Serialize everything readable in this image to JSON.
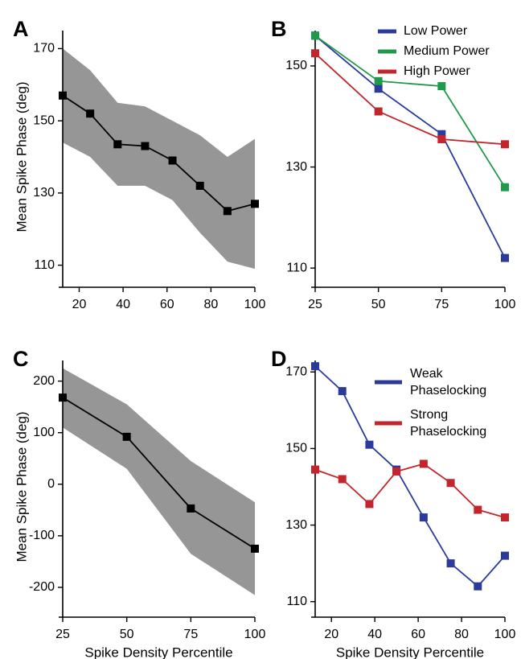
{
  "figure": {
    "x_axis_title": "Spike Density Percentile",
    "y_axis_title": "Mean Spike Phase (deg)"
  },
  "chart_data": [
    {
      "panel": "A",
      "type": "line",
      "ylabel": "Mean Spike Phase (deg)",
      "xlabel": "",
      "xlim": [
        12.5,
        100
      ],
      "ylim": [
        105,
        175
      ],
      "x_ticks": [
        20,
        40,
        60,
        80,
        100
      ],
      "y_ticks": [
        110,
        130,
        150,
        170
      ],
      "grid": false,
      "shaded_band": true,
      "band_color": "#969696",
      "series": [
        {
          "color": "#000000",
          "x": [
            12.5,
            25,
            37.5,
            50,
            62.5,
            75,
            87.5,
            100
          ],
          "values": [
            157,
            152,
            143.5,
            143,
            139,
            132,
            125,
            127
          ],
          "band_upper": [
            170,
            164,
            155,
            154,
            150,
            146,
            140,
            145
          ],
          "band_lower": [
            144,
            140,
            132,
            132,
            128,
            119,
            111,
            109
          ]
        }
      ]
    },
    {
      "panel": "B",
      "type": "line",
      "ylabel": "",
      "xlabel": "",
      "xlim": [
        25,
        100
      ],
      "ylim": [
        107,
        157
      ],
      "x_ticks": [
        25,
        50,
        75,
        100
      ],
      "y_ticks": [
        110,
        130,
        150
      ],
      "grid": false,
      "legend_position": "top-right",
      "series": [
        {
          "name": "Low Power",
          "color": "#2a3b9c",
          "x": [
            25,
            50,
            75,
            100
          ],
          "values": [
            156,
            145.5,
            136.5,
            112
          ]
        },
        {
          "name": "Medium Power",
          "color": "#1f9a4a",
          "x": [
            25,
            50,
            75,
            100
          ],
          "values": [
            156,
            147,
            146,
            126
          ]
        },
        {
          "name": "High Power",
          "color": "#c2262c",
          "x": [
            25,
            50,
            75,
            100
          ],
          "values": [
            152.5,
            141,
            135.5,
            134.5
          ]
        }
      ]
    },
    {
      "panel": "C",
      "type": "line",
      "ylabel": "Mean Spike Phase (deg)",
      "xlabel": "Spike Density Percentile",
      "xlim": [
        25,
        100
      ],
      "ylim": [
        -250,
        240
      ],
      "x_ticks": [
        25,
        50,
        75,
        100
      ],
      "y_ticks": [
        -200,
        -100,
        0,
        100,
        200
      ],
      "grid": false,
      "shaded_band": true,
      "band_color": "#969696",
      "series": [
        {
          "color": "#000000",
          "x": [
            25,
            50,
            75,
            100
          ],
          "values": [
            168,
            92,
            -47,
            -125
          ],
          "band_upper": [
            225,
            155,
            45,
            -35
          ],
          "band_lower": [
            110,
            30,
            -135,
            -215
          ]
        }
      ]
    },
    {
      "panel": "D",
      "type": "line",
      "ylabel": "",
      "xlabel": "Spike Density Percentile",
      "xlim": [
        12.5,
        100
      ],
      "ylim": [
        107,
        173
      ],
      "x_ticks": [
        20,
        40,
        60,
        80,
        100
      ],
      "y_ticks": [
        110,
        130,
        150,
        170
      ],
      "grid": false,
      "legend_position": "top-right",
      "series": [
        {
          "name": "Weak Phaselocking",
          "color": "#2a3b9c",
          "x": [
            12.5,
            25,
            37.5,
            50,
            62.5,
            75,
            87.5,
            100
          ],
          "values": [
            171.5,
            165,
            151,
            144.5,
            132,
            120,
            114,
            122
          ]
        },
        {
          "name": "Strong Phaselocking",
          "color": "#c2262c",
          "x": [
            12.5,
            25,
            37.5,
            50,
            62.5,
            75,
            87.5,
            100
          ],
          "values": [
            144.5,
            142,
            135.5,
            144,
            146,
            141,
            134,
            132
          ]
        }
      ]
    }
  ]
}
